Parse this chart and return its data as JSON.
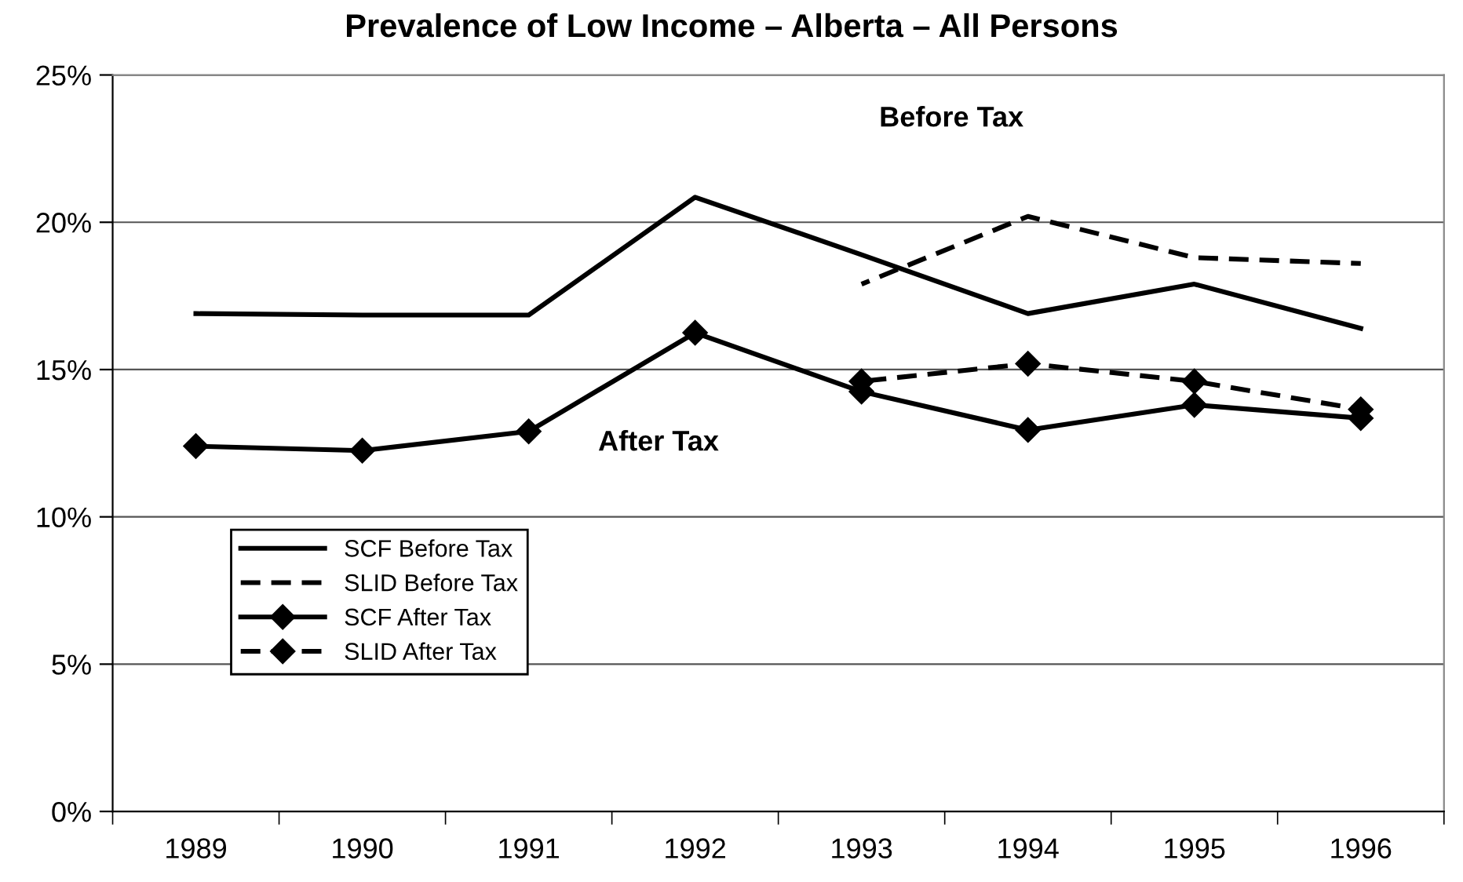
{
  "chart_data": {
    "type": "line",
    "title": "Prevalence of Low Income – Alberta – All Persons",
    "categories": [
      "1989",
      "1990",
      "1991",
      "1992",
      "1993",
      "1994",
      "1995",
      "1996"
    ],
    "series": [
      {
        "name": "SCF Before Tax",
        "color": "#000000",
        "line_style": "solid",
        "marker": "none",
        "values": [
          16.9,
          16.85,
          16.85,
          20.85,
          18.9,
          16.9,
          17.9,
          16.4
        ]
      },
      {
        "name": "SLID Before Tax",
        "color": "#000000",
        "line_style": "dashed",
        "marker": "none",
        "values": [
          null,
          null,
          null,
          null,
          17.9,
          20.2,
          18.8,
          18.6
        ]
      },
      {
        "name": "SCF After Tax",
        "color": "#000000",
        "line_style": "solid",
        "marker": "diamond",
        "values": [
          12.4,
          12.25,
          12.9,
          16.25,
          14.25,
          12.95,
          13.8,
          13.35
        ]
      },
      {
        "name": "SLID After Tax",
        "color": "#000000",
        "line_style": "dashed",
        "marker": "diamond",
        "values": [
          null,
          null,
          null,
          null,
          14.6,
          15.2,
          14.6,
          13.65
        ]
      }
    ],
    "ylim": [
      0,
      25
    ],
    "yticks": [
      {
        "value": 0,
        "label": "0%"
      },
      {
        "value": 5,
        "label": "5%"
      },
      {
        "value": 10,
        "label": "10%"
      },
      {
        "value": 15,
        "label": "15%"
      },
      {
        "value": 20,
        "label": "20%"
      },
      {
        "value": 25,
        "label": "25%"
      }
    ],
    "grid": "y",
    "legend": "bottom left",
    "annotations": [
      "Before Tax",
      "After Tax"
    ]
  }
}
